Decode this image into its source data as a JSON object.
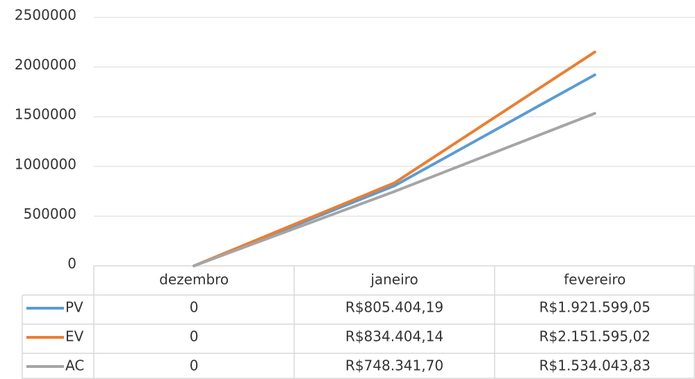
{
  "chart_data": {
    "type": "line",
    "categories": [
      "dezembro",
      "janeiro",
      "fevereiro"
    ],
    "series": [
      {
        "name": "PV",
        "color": "#5b9bd5",
        "values": [
          0,
          805404.19,
          1921599.05
        ],
        "value_labels": [
          "0",
          "R$805.404,19",
          "R$1.921.599,05"
        ]
      },
      {
        "name": "EV",
        "color": "#ed7d31",
        "values": [
          0,
          834404.14,
          2151595.02
        ],
        "value_labels": [
          "0",
          "R$834.404,14",
          "R$2.151.595,02"
        ]
      },
      {
        "name": "AC",
        "color": "#a5a5a5",
        "values": [
          0,
          748341.7,
          1534043.83
        ],
        "value_labels": [
          "0",
          "R$748.341,70",
          "R$1.534.043,83"
        ]
      }
    ],
    "ylim": [
      0,
      2500000
    ],
    "yticks": [
      0,
      500000,
      1000000,
      1500000,
      2000000,
      2500000
    ],
    "grid": true
  }
}
